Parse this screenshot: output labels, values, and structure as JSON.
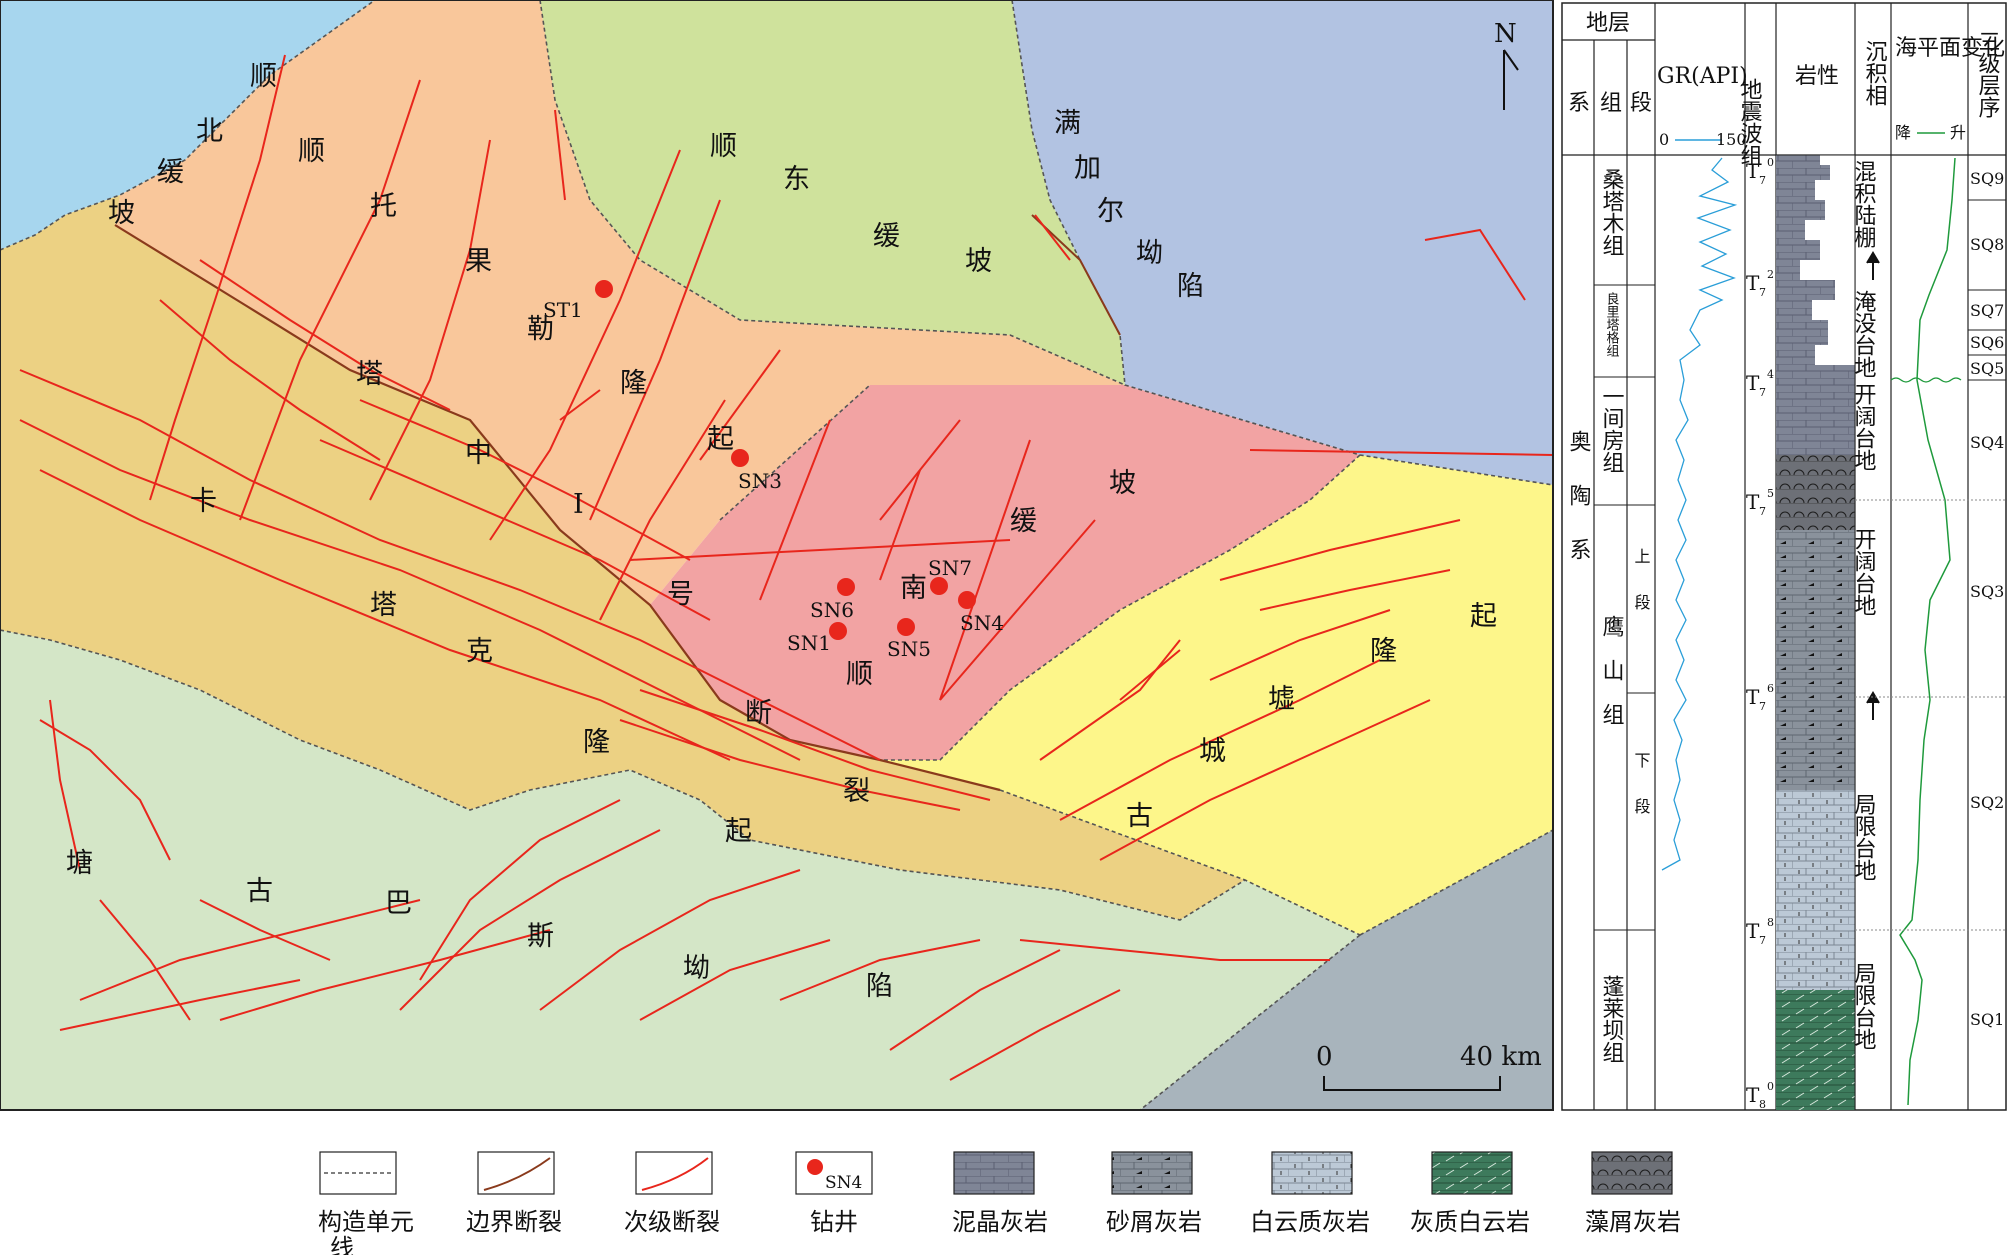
{
  "map": {
    "north_label": "N",
    "scale": {
      "zero": "0",
      "end": "40 km"
    },
    "region_labels": [
      {
        "id": "shunbei-1",
        "text": "顺"
      },
      {
        "id": "shunbei-2",
        "text": "北"
      },
      {
        "id": "shunbei-3",
        "text": "缓"
      },
      {
        "id": "shunbei-4",
        "text": "坡"
      },
      {
        "id": "shuntuo-1",
        "text": "顺"
      },
      {
        "id": "shuntuo-2",
        "text": "托"
      },
      {
        "id": "shuntuo-3",
        "text": "果"
      },
      {
        "id": "shuntuo-4",
        "text": "勒"
      },
      {
        "id": "shuntuo-5",
        "text": "隆"
      },
      {
        "id": "shuntuo-6",
        "text": "起"
      },
      {
        "id": "shundong-1",
        "text": "顺"
      },
      {
        "id": "shundong-2",
        "text": "东"
      },
      {
        "id": "shundong-3",
        "text": "缓"
      },
      {
        "id": "shundong-4",
        "text": "坡"
      },
      {
        "id": "manjiaer-1",
        "text": "满"
      },
      {
        "id": "manjiaer-2",
        "text": "加"
      },
      {
        "id": "manjiaer-3",
        "text": "尔"
      },
      {
        "id": "manjiaer-4",
        "text": "坳"
      },
      {
        "id": "manjiaer-5",
        "text": "陷"
      },
      {
        "id": "tazhong-1",
        "text": "塔"
      },
      {
        "id": "tazhong-2",
        "text": "中"
      },
      {
        "id": "tazhong-3",
        "text": "I"
      },
      {
        "id": "tazhong-4",
        "text": "号"
      },
      {
        "id": "tazhong-5",
        "text": "断"
      },
      {
        "id": "tazhong-6",
        "text": "裂"
      },
      {
        "id": "katake-1",
        "text": "卡"
      },
      {
        "id": "katake-2",
        "text": "塔"
      },
      {
        "id": "katake-3",
        "text": "克"
      },
      {
        "id": "katake-4",
        "text": "隆"
      },
      {
        "id": "katake-5",
        "text": "起"
      },
      {
        "id": "shunnan-1",
        "text": "顺"
      },
      {
        "id": "shunnan-2",
        "text": "南"
      },
      {
        "id": "shunnan-3",
        "text": "缓"
      },
      {
        "id": "shunnan-4",
        "text": "坡"
      },
      {
        "id": "guchengxu-1",
        "text": "古"
      },
      {
        "id": "guchengxu-2",
        "text": "城"
      },
      {
        "id": "guchengxu-3",
        "text": "墟"
      },
      {
        "id": "guchengxu-4",
        "text": "隆"
      },
      {
        "id": "guchengxu-5",
        "text": "起"
      },
      {
        "id": "tanggu-1",
        "text": "塘"
      },
      {
        "id": "tanggu-2",
        "text": "古"
      },
      {
        "id": "tanggu-3",
        "text": "巴"
      },
      {
        "id": "tanggu-4",
        "text": "斯"
      },
      {
        "id": "tanggu-5",
        "text": "坳"
      },
      {
        "id": "tanggu-6",
        "text": "陷"
      }
    ],
    "wells": [
      "ST1",
      "SN3",
      "SN6",
      "SN7",
      "SN1",
      "SN5",
      "SN4"
    ],
    "colors": {
      "shunbei": "#a7d6ee",
      "shuntuo": "#f9c79b",
      "shundong": "#cfe29c",
      "manjiaer": "#b2c3e2",
      "katake": "#ecd183",
      "shunnan": "#f2a3a3",
      "guchengxu": "#fdf68a",
      "tanggu": "#d4e6c7",
      "southeast": "#a8b4bc",
      "fault": "#e8261c",
      "well": "#e8261c"
    }
  },
  "column": {
    "headers": {
      "stratum": "地层",
      "system": "系",
      "formation": "组",
      "member": "段",
      "gr": "GR(API)",
      "gr_min": "0",
      "gr_max": "150",
      "seismic": "地震波组",
      "lithology": "岩性",
      "facies": "沉积相",
      "sea_level": "海平面变化",
      "sea_fall": "降",
      "sea_rise": "升",
      "sequence": "三级层序"
    },
    "system_name": "奥陶系",
    "formations": [
      {
        "id": "sangtamu",
        "name": "桑塔木组"
      },
      {
        "id": "lianglitage",
        "name": "良里塔格组"
      },
      {
        "id": "yijianfang",
        "name": "一间房组"
      },
      {
        "id": "yingshan",
        "name": "鹰山组"
      },
      {
        "id": "penglaiba",
        "name": "蓬莱坝组"
      }
    ],
    "members": [
      {
        "id": "upper",
        "name": "上段"
      },
      {
        "id": "lower",
        "name": "下段"
      }
    ],
    "seismic_horizons": [
      {
        "base": "T",
        "sub": "7",
        "sup": "0"
      },
      {
        "base": "T",
        "sub": "7",
        "sup": "2"
      },
      {
        "base": "T",
        "sub": "7",
        "sup": "4"
      },
      {
        "base": "T",
        "sub": "7",
        "sup": "5"
      },
      {
        "base": "T",
        "sub": "7",
        "sup": "6"
      },
      {
        "base": "T",
        "sub": "7",
        "sup": "8"
      },
      {
        "base": "T",
        "sub": "8",
        "sup": "0"
      }
    ],
    "facies": [
      {
        "id": "hunji",
        "text": "混积陆棚"
      },
      {
        "id": "yanmo",
        "text": "淹没台地"
      },
      {
        "id": "kaikuo1",
        "text": "开阔台地"
      },
      {
        "id": "kaikuo2",
        "text": "开阔台地"
      },
      {
        "id": "juxian1",
        "text": "局限台地"
      },
      {
        "id": "juxian2",
        "text": "局限台地"
      }
    ],
    "sequences": [
      "SQ9",
      "SQ8",
      "SQ7",
      "SQ6",
      "SQ5",
      "SQ4",
      "SQ3",
      "SQ2",
      "SQ1"
    ]
  },
  "legend": [
    {
      "id": "tectonic-line",
      "label": "构造单元线"
    },
    {
      "id": "boundary-fault",
      "label": "边界断裂"
    },
    {
      "id": "secondary-fault",
      "label": "次级断裂"
    },
    {
      "id": "well",
      "label": "钻井",
      "sample": "SN4"
    },
    {
      "id": "micrite",
      "label": "泥晶灰岩"
    },
    {
      "id": "calcarenite",
      "label": "砂屑灰岩"
    },
    {
      "id": "dolomitic-ls",
      "label": "白云质灰岩"
    },
    {
      "id": "calcitic-dol",
      "label": "灰质白云岩"
    },
    {
      "id": "algal-ls",
      "label": "藻屑灰岩"
    }
  ]
}
